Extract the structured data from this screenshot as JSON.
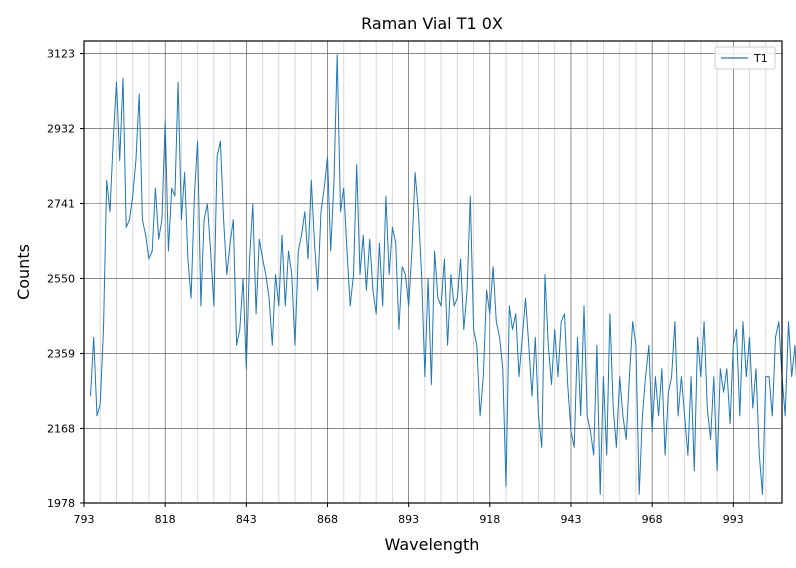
{
  "chart_data": {
    "type": "line",
    "title": "Raman Vial T1 0X",
    "xlabel": "Wavelength",
    "ylabel": "Counts",
    "xlim": [
      793,
      1008
    ],
    "ylim": [
      1978,
      3155
    ],
    "x_ticks": [
      793,
      818,
      843,
      868,
      893,
      918,
      943,
      968,
      993
    ],
    "y_ticks": [
      1978,
      2168,
      2359,
      2550,
      2741,
      2932,
      3123
    ],
    "grid": true,
    "minor_x_grid": true,
    "legend": {
      "position": "top-right",
      "entries": [
        "T1"
      ]
    },
    "series": [
      {
        "name": "T1",
        "color": "#1f77b4",
        "x_start": 795,
        "x_step": 1,
        "values": [
          2250,
          2400,
          2200,
          2230,
          2420,
          2800,
          2720,
          2900,
          3050,
          2850,
          3060,
          2680,
          2700,
          2760,
          2850,
          3020,
          2700,
          2660,
          2600,
          2620,
          2780,
          2650,
          2700,
          2950,
          2620,
          2780,
          2760,
          3050,
          2700,
          2820,
          2600,
          2500,
          2760,
          2900,
          2480,
          2700,
          2740,
          2620,
          2480,
          2860,
          2900,
          2700,
          2560,
          2640,
          2700,
          2380,
          2420,
          2550,
          2320,
          2600,
          2740,
          2460,
          2650,
          2600,
          2560,
          2500,
          2380,
          2560,
          2480,
          2660,
          2480,
          2620,
          2560,
          2380,
          2620,
          2660,
          2720,
          2600,
          2800,
          2640,
          2520,
          2720,
          2780,
          2860,
          2620,
          2800,
          3120,
          2720,
          2780,
          2620,
          2480,
          2560,
          2840,
          2560,
          2660,
          2520,
          2650,
          2520,
          2460,
          2640,
          2480,
          2760,
          2560,
          2680,
          2640,
          2420,
          2580,
          2560,
          2480,
          2620,
          2820,
          2720,
          2560,
          2300,
          2550,
          2280,
          2620,
          2500,
          2480,
          2600,
          2380,
          2560,
          2480,
          2500,
          2600,
          2420,
          2520,
          2760,
          2420,
          2380,
          2200,
          2300,
          2520,
          2460,
          2580,
          2440,
          2400,
          2320,
          2020,
          2480,
          2420,
          2460,
          2300,
          2400,
          2500,
          2380,
          2250,
          2400,
          2200,
          2120,
          2560,
          2380,
          2280,
          2420,
          2300,
          2440,
          2460,
          2280,
          2160,
          2120,
          2400,
          2200,
          2480,
          2200,
          2160,
          2100,
          2380,
          2000,
          2300,
          2100,
          2460,
          2220,
          2120,
          2300,
          2200,
          2140,
          2300,
          2440,
          2380,
          2000,
          2200,
          2300,
          2380,
          2160,
          2300,
          2200,
          2320,
          2100,
          2260,
          2300,
          2440,
          2200,
          2300,
          2200,
          2100,
          2300,
          2060,
          2400,
          2300,
          2440,
          2220,
          2140,
          2300,
          2060,
          2320,
          2260,
          2320,
          2180,
          2380,
          2420,
          2200,
          2440,
          2300,
          2400,
          2220,
          2320,
          2100,
          2000,
          2300,
          2300,
          2200,
          2400,
          2440,
          2300,
          2200,
          2440,
          2300,
          2380,
          2200,
          2300
        ]
      }
    ]
  }
}
